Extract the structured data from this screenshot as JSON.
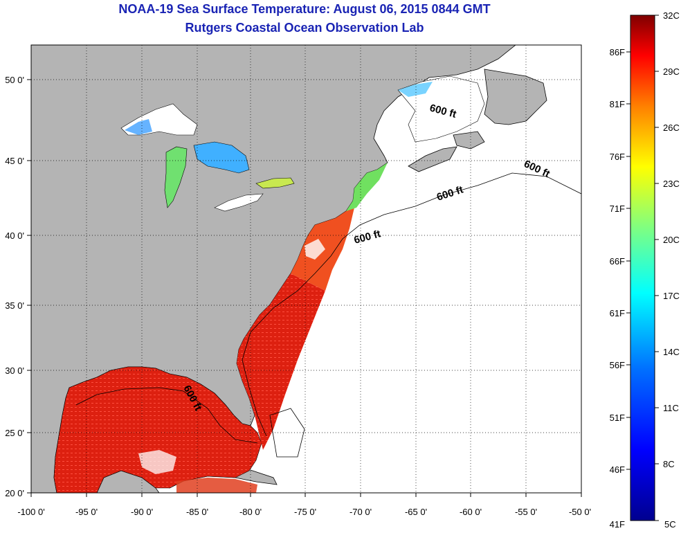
{
  "title": "NOAA-19 Sea Surface Temperature:  August 06, 2015 0844 GMT",
  "subtitle": "Rutgers Coastal Ocean Observation Lab",
  "map": {
    "lon_labels": [
      "-100 0'",
      "-95 0'",
      "-90 0'",
      "-85 0'",
      "-80 0'",
      "-75 0'",
      "-70 0'",
      "-65 0'",
      "-60 0'",
      "-55 0'",
      "-50 0'"
    ],
    "lat_labels": [
      "50 0'",
      "45 0'",
      "40 0'",
      "35 0'",
      "30 0'",
      "25 0'",
      "20 0'"
    ],
    "isobath_labels": [
      "600 ft",
      "600 ft",
      "600 ft",
      "600 ft",
      "600 ft"
    ],
    "land_color": "#b4b4b4",
    "no_data_color": "#ffffff"
  },
  "colorbar": {
    "celsius_labels": [
      "32C",
      "29C",
      "26C",
      "23C",
      "20C",
      "17C",
      "14C",
      "11C",
      "8C",
      "5C"
    ],
    "fahrenheit_labels": [
      "86F",
      "81F",
      "76F",
      "71F",
      "66F",
      "61F",
      "56F",
      "51F",
      "46F",
      "41F"
    ],
    "colors": [
      "#7f0000",
      "#ff0000",
      "#ff8000",
      "#ffff00",
      "#80ff80",
      "#00ffff",
      "#0080ff",
      "#0000ff",
      "#00008f"
    ]
  }
}
